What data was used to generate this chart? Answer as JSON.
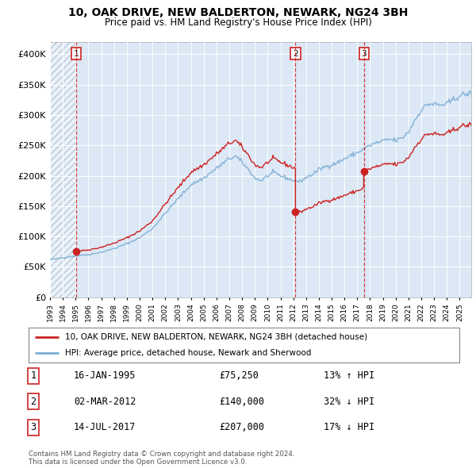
{
  "title": "10, OAK DRIVE, NEW BALDERTON, NEWARK, NG24 3BH",
  "subtitle": "Price paid vs. HM Land Registry's House Price Index (HPI)",
  "ylim": [
    0,
    420000
  ],
  "yticks": [
    0,
    50000,
    100000,
    150000,
    200000,
    250000,
    300000,
    350000,
    400000
  ],
  "ytick_labels": [
    "£0",
    "£50K",
    "£100K",
    "£150K",
    "£200K",
    "£250K",
    "£300K",
    "£350K",
    "£400K"
  ],
  "hpi_color": "#7aadd4",
  "price_color": "#cc2222",
  "background_color": "#dce8f5",
  "hatch_color": "#b8c8d8",
  "sale_prices": [
    75250,
    140000,
    207000
  ],
  "sale_labels": [
    "1",
    "2",
    "3"
  ],
  "sale_times": [
    1995.04,
    2012.17,
    2017.54
  ],
  "legend_price_label": "10, OAK DRIVE, NEW BALDERTON, NEWARK, NG24 3BH (detached house)",
  "legend_hpi_label": "HPI: Average price, detached house, Newark and Sherwood",
  "table_rows": [
    [
      "1",
      "16-JAN-1995",
      "£75,250",
      "13% ↑ HPI"
    ],
    [
      "2",
      "02-MAR-2012",
      "£140,000",
      "32% ↓ HPI"
    ],
    [
      "3",
      "14-JUL-2017",
      "£207,000",
      "17% ↓ HPI"
    ]
  ],
  "footnote": "Contains HM Land Registry data © Crown copyright and database right 2024.\nThis data is licensed under the Open Government Licence v3.0.",
  "xlim_start": 1993.0,
  "xlim_end": 2025.9,
  "xticks": [
    1993,
    1994,
    1995,
    1996,
    1997,
    1998,
    1999,
    2000,
    2001,
    2002,
    2003,
    2004,
    2005,
    2006,
    2007,
    2008,
    2009,
    2010,
    2011,
    2012,
    2013,
    2014,
    2015,
    2016,
    2017,
    2018,
    2019,
    2020,
    2021,
    2022,
    2023,
    2024,
    2025
  ]
}
